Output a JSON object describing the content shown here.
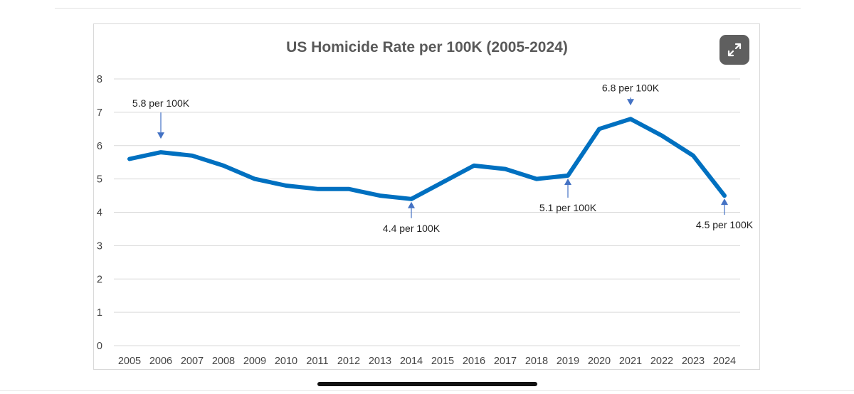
{
  "chart_data": {
    "type": "line",
    "title": "US Homicide Rate per 100K (2005-2024)",
    "xlabel": "",
    "ylabel": "",
    "categories": [
      "2005",
      "2006",
      "2007",
      "2008",
      "2009",
      "2010",
      "2011",
      "2012",
      "2013",
      "2014",
      "2015",
      "2016",
      "2017",
      "2018",
      "2019",
      "2020",
      "2021",
      "2022",
      "2023",
      "2024"
    ],
    "series": [
      {
        "name": "Homicide rate per 100K",
        "values": [
          5.6,
          5.8,
          5.7,
          5.4,
          5.0,
          4.8,
          4.7,
          4.7,
          4.5,
          4.4,
          4.9,
          5.4,
          5.3,
          5.0,
          5.1,
          6.5,
          6.8,
          6.3,
          5.7,
          4.5
        ],
        "color": "#0070c0"
      }
    ],
    "ylim": [
      0,
      8
    ],
    "yticks": [
      0,
      1,
      2,
      3,
      4,
      5,
      6,
      7,
      8
    ],
    "grid": true,
    "legend": "none",
    "annotations": [
      {
        "text": "5.8 per 100K",
        "year": "2006",
        "value": 5.8,
        "placement": "above"
      },
      {
        "text": "4.4 per 100K",
        "year": "2014",
        "value": 4.4,
        "placement": "below"
      },
      {
        "text": "5.1 per 100K",
        "year": "2019",
        "value": 5.1,
        "placement": "below"
      },
      {
        "text": "6.8 per 100K",
        "year": "2021",
        "value": 6.8,
        "placement": "above"
      },
      {
        "text": "4.5 per 100K",
        "year": "2024",
        "value": 4.5,
        "placement": "below"
      }
    ]
  },
  "colors": {
    "line": "#0070c0",
    "arrow": "#4472c4",
    "grid": "#d9d9d9",
    "expand_button": "#5f5f5f"
  },
  "icons": {
    "expand": "expand-icon"
  }
}
